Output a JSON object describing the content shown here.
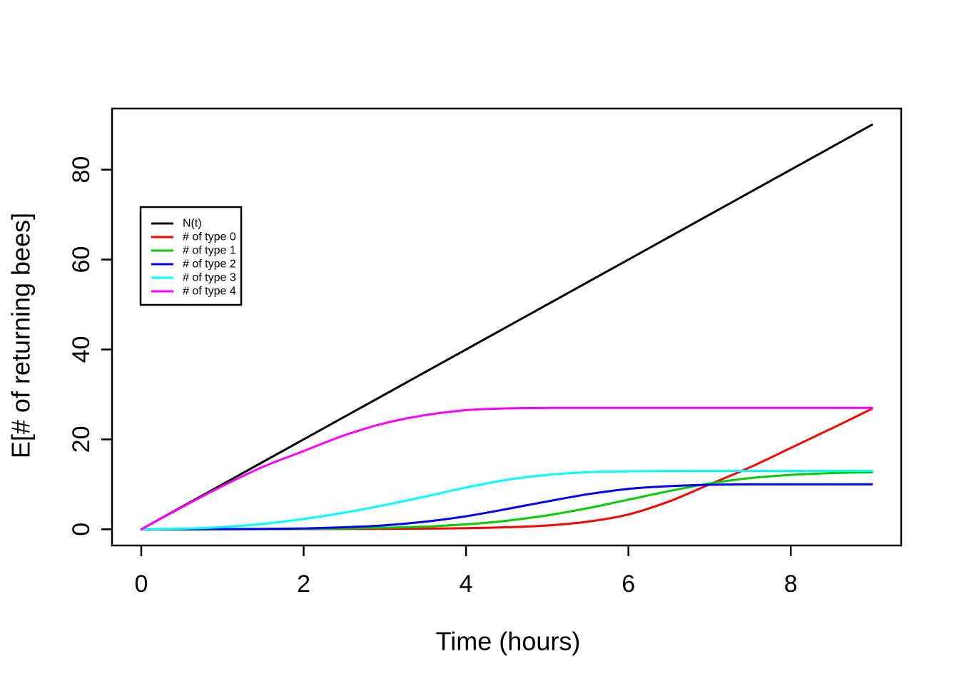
{
  "chart_data": {
    "type": "line",
    "title": "",
    "xlabel": "Time (hours)",
    "ylabel": "E[# of returning bees]",
    "xlim": [
      0,
      9
    ],
    "ylim": [
      0,
      90
    ],
    "xticks": [
      "0",
      "2",
      "4",
      "6",
      "8"
    ],
    "yticks": [
      "0",
      "20",
      "40",
      "60",
      "80"
    ],
    "grid": false,
    "background": "#FFFFFF",
    "axis_color": "#000000",
    "legend": {
      "position": "upper-left",
      "border": true,
      "entries": [
        "N(t)",
        "# of type 0",
        "# of type 1",
        "# of type 2",
        "# of type 3",
        "# of type 4"
      ]
    },
    "series": [
      {
        "name": "N(t)",
        "color": "#000000",
        "points": [
          [
            0,
            0
          ],
          [
            9,
            90
          ]
        ]
      },
      {
        "name": "# of type 0",
        "color": "#FF0000",
        "points": [
          [
            0,
            0
          ],
          [
            1,
            0
          ],
          [
            2,
            0.05
          ],
          [
            3,
            0.1
          ],
          [
            3.5,
            0.15
          ],
          [
            4,
            0.25
          ],
          [
            4.5,
            0.45
          ],
          [
            5,
            0.85
          ],
          [
            5.5,
            1.7
          ],
          [
            6,
            3.3
          ],
          [
            6.5,
            6.2
          ],
          [
            7,
            10
          ],
          [
            7.5,
            13.8
          ],
          [
            8,
            18.1
          ],
          [
            8.5,
            22.4
          ],
          [
            9,
            26.8
          ]
        ]
      },
      {
        "name": "# of type 1",
        "color": "#00CD00",
        "points": [
          [
            0,
            0
          ],
          [
            1,
            0
          ],
          [
            1.5,
            0.05
          ],
          [
            2,
            0.1
          ],
          [
            2.5,
            0.2
          ],
          [
            3,
            0.35
          ],
          [
            3.5,
            0.6
          ],
          [
            4,
            1.1
          ],
          [
            4.5,
            1.9
          ],
          [
            5,
            3.1
          ],
          [
            5.5,
            4.7
          ],
          [
            6,
            6.6
          ],
          [
            6.5,
            8.5
          ],
          [
            7,
            10.2
          ],
          [
            7.5,
            11.4
          ],
          [
            8,
            12.1
          ],
          [
            8.5,
            12.5
          ],
          [
            9,
            12.7
          ]
        ]
      },
      {
        "name": "# of type 2",
        "color": "#0000FF",
        "points": [
          [
            0,
            0
          ],
          [
            0.5,
            0
          ],
          [
            1,
            0.05
          ],
          [
            1.5,
            0.1
          ],
          [
            2,
            0.2
          ],
          [
            2.5,
            0.45
          ],
          [
            3,
            0.9
          ],
          [
            3.5,
            1.7
          ],
          [
            4,
            2.9
          ],
          [
            4.5,
            4.5
          ],
          [
            5,
            6.2
          ],
          [
            5.5,
            7.8
          ],
          [
            6,
            9
          ],
          [
            6.5,
            9.6
          ],
          [
            7,
            9.9
          ],
          [
            7.5,
            10
          ],
          [
            8,
            10
          ],
          [
            8.5,
            10
          ],
          [
            9,
            10
          ]
        ]
      },
      {
        "name": "# of type 3",
        "color": "#00FFFF",
        "points": [
          [
            0,
            0
          ],
          [
            0.5,
            0.15
          ],
          [
            1,
            0.5
          ],
          [
            1.5,
            1.2
          ],
          [
            2,
            2.3
          ],
          [
            2.5,
            3.7
          ],
          [
            3,
            5.4
          ],
          [
            3.5,
            7.3
          ],
          [
            4,
            9.3
          ],
          [
            4.5,
            11
          ],
          [
            5,
            12.1
          ],
          [
            5.5,
            12.7
          ],
          [
            6,
            12.9
          ],
          [
            6.5,
            13
          ],
          [
            7,
            13
          ],
          [
            7.5,
            13
          ],
          [
            8,
            13
          ],
          [
            8.5,
            13
          ],
          [
            9,
            13
          ]
        ]
      },
      {
        "name": "# of type 4",
        "color": "#FF00FF",
        "points": [
          [
            0,
            0
          ],
          [
            0.5,
            4.9
          ],
          [
            1,
            9.6
          ],
          [
            1.5,
            13.9
          ],
          [
            2,
            17.4
          ],
          [
            2.5,
            20.9
          ],
          [
            3,
            23.6
          ],
          [
            3.5,
            25.4
          ],
          [
            4,
            26.5
          ],
          [
            4.5,
            26.9
          ],
          [
            5,
            27
          ],
          [
            5.5,
            27
          ],
          [
            6,
            27
          ],
          [
            6.5,
            27
          ],
          [
            7,
            27
          ],
          [
            7.5,
            27
          ],
          [
            8,
            27
          ],
          [
            8.5,
            27
          ],
          [
            9,
            27
          ]
        ]
      }
    ]
  }
}
